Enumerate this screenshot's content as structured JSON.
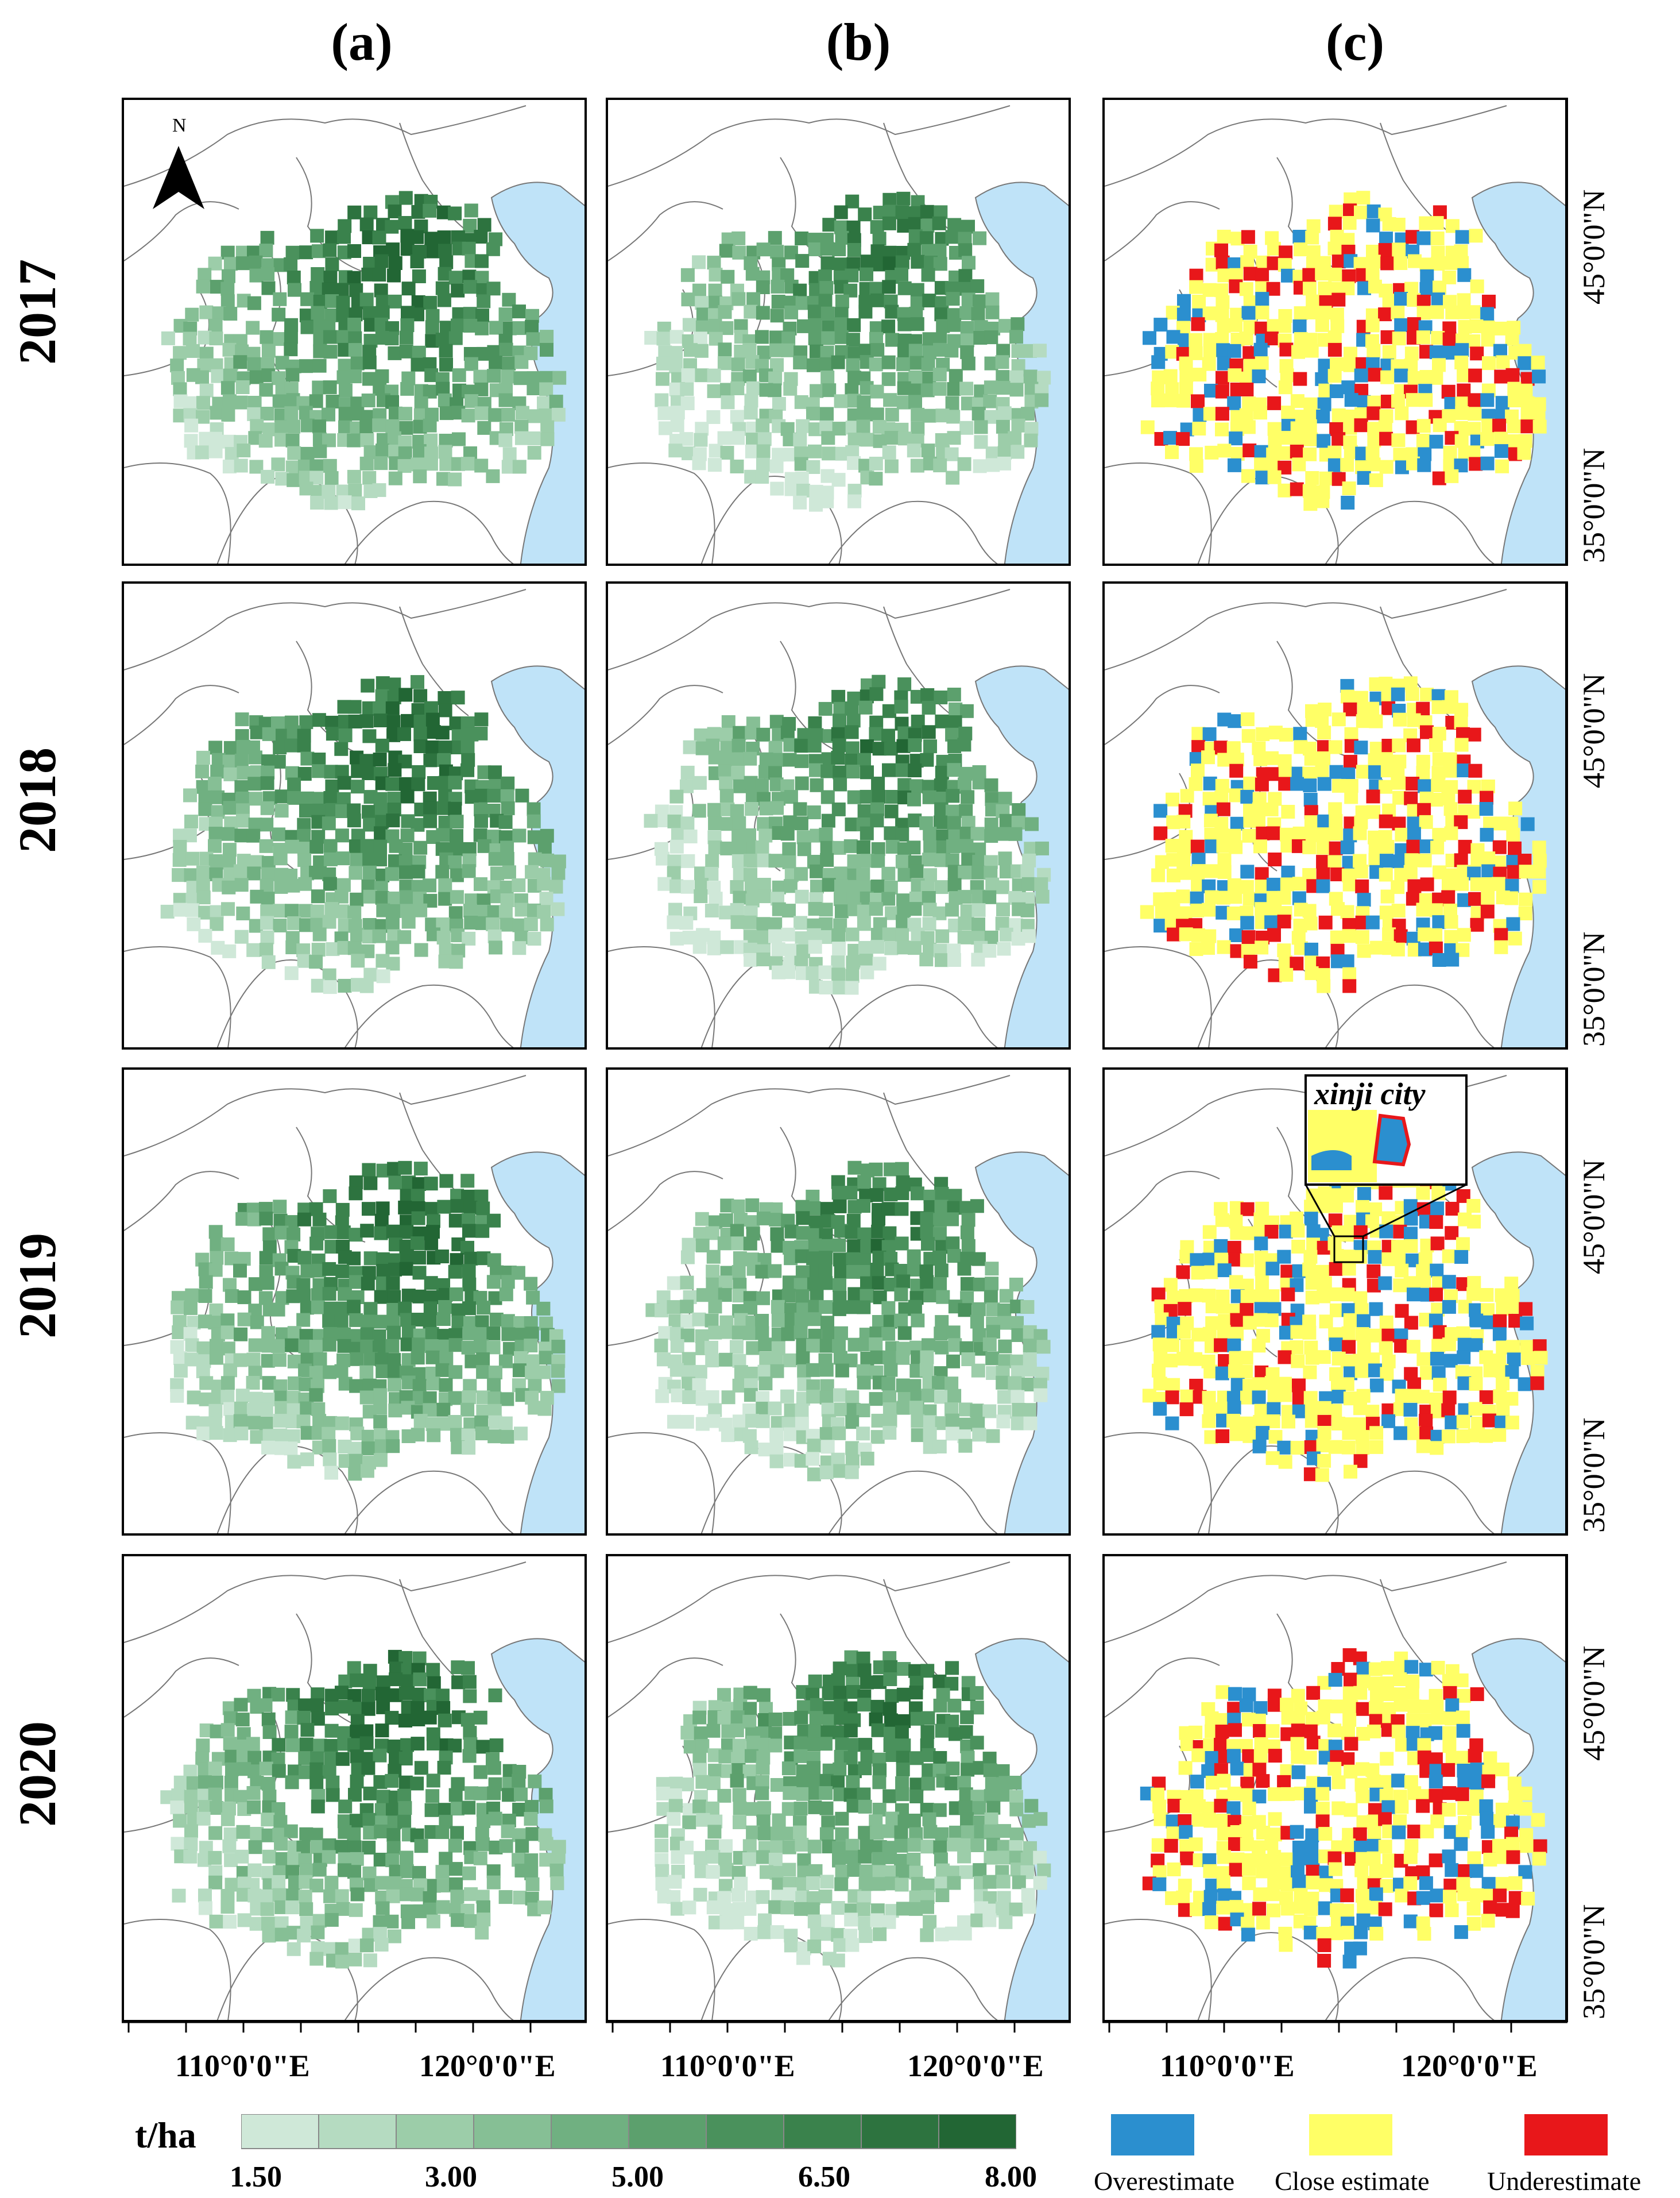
{
  "columns": [
    "(a)",
    "(b)",
    "(c)"
  ],
  "rows": [
    "2017",
    "2018",
    "2019",
    "2020"
  ],
  "north_arrow": {
    "label": "N"
  },
  "latitude_labels": [
    "45°0'0\"N",
    "35°0'0\"N"
  ],
  "longitude_labels": [
    "110°0'0\"E",
    "120°0'0\"E"
  ],
  "continuous_legend": {
    "unit": "t/ha",
    "tick_labels": [
      "1.50",
      "3.00",
      "5.00",
      "6.50",
      "8.00"
    ],
    "class_colors": [
      "#cfe8d8",
      "#b5dbc1",
      "#9ccda9",
      "#86bf95",
      "#70b081",
      "#5ca06d",
      "#4a915c",
      "#3a824c",
      "#2d733f",
      "#226634"
    ]
  },
  "categorical_legend": [
    {
      "label": "Overestimate",
      "color": "#2b8fcf"
    },
    {
      "label": "Close estimate",
      "color": "#ffff66"
    },
    {
      "label": "Underestimate",
      "color": "#e8171a"
    }
  ],
  "inset": {
    "title": "xinji city",
    "row": "2019",
    "column": "(c)"
  },
  "colors": {
    "sea": "#bfe3f8",
    "border": "#777777",
    "frame": "#000000"
  }
}
